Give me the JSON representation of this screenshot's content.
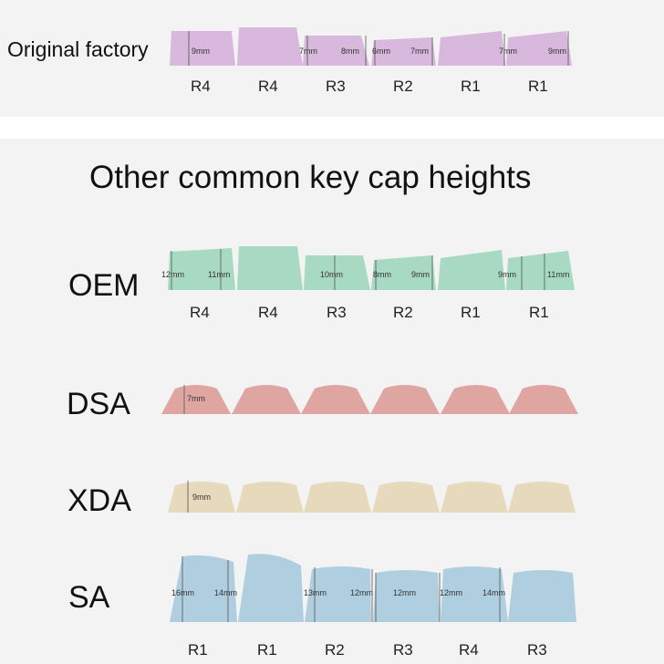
{
  "factory_label": "Original factory",
  "title": "Other common key cap heights",
  "colors": {
    "factory": "#d8b8dc",
    "oem": "#a8d9c3",
    "dsa": "#dfa6a1",
    "xda": "#e7d9bb",
    "sa": "#afcedf"
  },
  "factory": {
    "rows": [
      "R4",
      "R4",
      "R3",
      "R2",
      "R1",
      "R1"
    ],
    "heights": [
      "9mm",
      "7mm",
      "8mm",
      "6mm",
      "7mm",
      "7mm",
      "9mm"
    ]
  },
  "oem": {
    "name": "OEM",
    "rows": [
      "R4",
      "R4",
      "R3",
      "R2",
      "R1",
      "R1"
    ],
    "heights": [
      "12mm",
      "11mm",
      "10mm",
      "8mm",
      "9mm",
      "9mm",
      "11mm"
    ]
  },
  "dsa": {
    "name": "DSA",
    "heights": [
      "7mm"
    ]
  },
  "xda": {
    "name": "XDA",
    "heights": [
      "9mm"
    ]
  },
  "sa": {
    "name": "SA",
    "rows": [
      "R1",
      "R1",
      "R2",
      "R3",
      "R4",
      "R3"
    ],
    "heights": [
      "16mm",
      "14mm",
      "13mm",
      "12mm",
      "12mm",
      "12mm",
      "14mm"
    ]
  }
}
